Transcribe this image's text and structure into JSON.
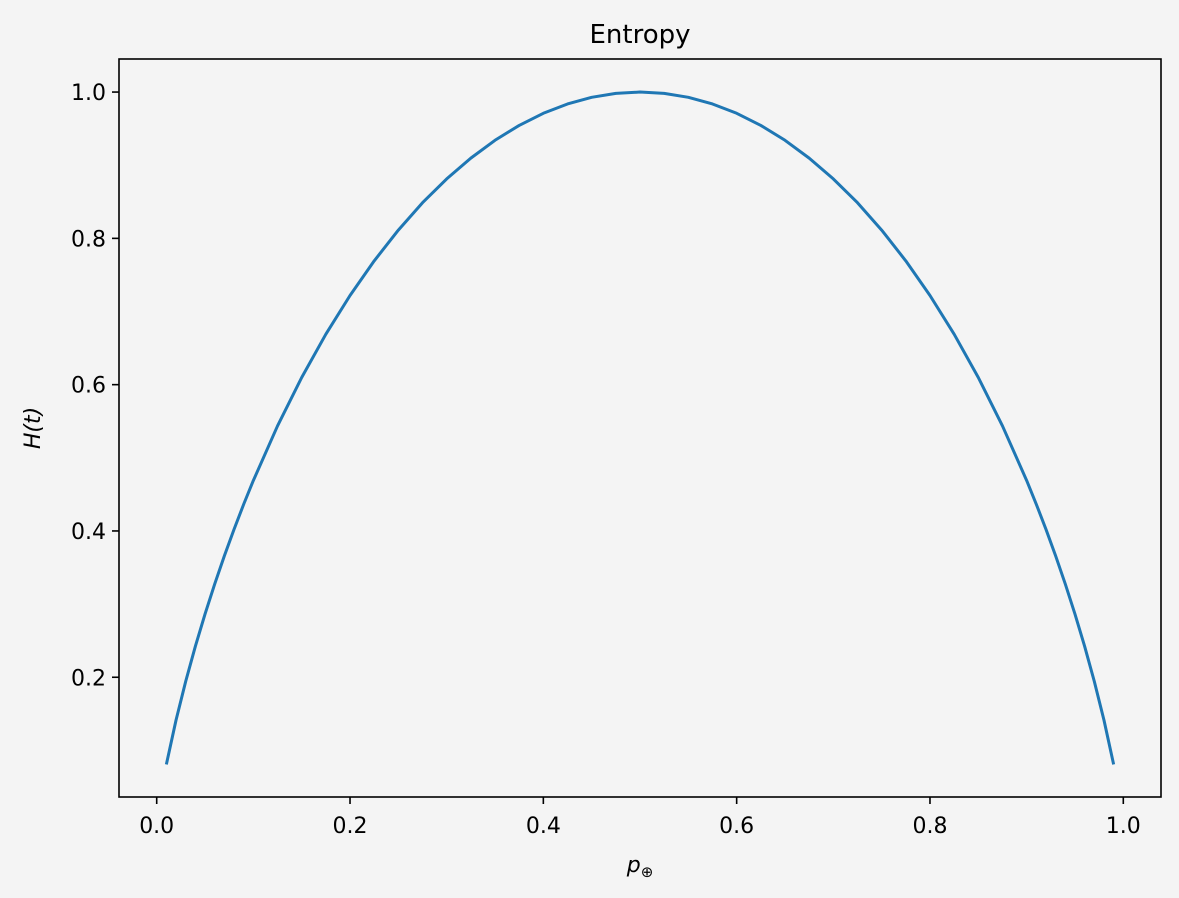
{
  "chart_data": {
    "type": "line",
    "title": "Entropy",
    "xlabel": "p",
    "xlabel_subscript": "⊕",
    "ylabel": "H(t)",
    "xlim": [
      -0.039,
      1.039
    ],
    "ylim": [
      0.0363,
      1.0452
    ],
    "x_ticks": [
      0.0,
      0.2,
      0.4,
      0.6,
      0.8,
      1.0
    ],
    "x_tick_labels": [
      "0.0",
      "0.2",
      "0.4",
      "0.6",
      "0.8",
      "1.0"
    ],
    "y_ticks": [
      0.2,
      0.4,
      0.6,
      0.8,
      1.0
    ],
    "y_tick_labels": [
      "0.2",
      "0.4",
      "0.6",
      "0.8",
      "1.0"
    ],
    "grid": false,
    "colors": {
      "background": "#f4f4f4",
      "line": "#1f77b4",
      "axes": "#000000"
    },
    "series": [
      {
        "x": [
          0.01,
          0.02,
          0.03,
          0.04,
          0.05,
          0.06,
          0.07,
          0.08,
          0.09,
          0.1,
          0.125,
          0.15,
          0.175,
          0.2,
          0.225,
          0.25,
          0.275,
          0.3,
          0.325,
          0.35,
          0.375,
          0.4,
          0.425,
          0.45,
          0.475,
          0.5,
          0.525,
          0.55,
          0.575,
          0.6,
          0.625,
          0.65,
          0.675,
          0.7,
          0.725,
          0.75,
          0.775,
          0.8,
          0.825,
          0.85,
          0.875,
          0.9,
          0.91,
          0.92,
          0.93,
          0.94,
          0.95,
          0.96,
          0.97,
          0.98,
          0.99
        ],
        "values": [
          0.0808,
          0.1414,
          0.1944,
          0.2423,
          0.2864,
          0.3274,
          0.3659,
          0.4022,
          0.4365,
          0.469,
          0.5436,
          0.6098,
          0.669,
          0.7219,
          0.7692,
          0.8113,
          0.8487,
          0.8813,
          0.9097,
          0.9341,
          0.9544,
          0.971,
          0.9837,
          0.9928,
          0.9982,
          1.0,
          0.9982,
          0.9928,
          0.9837,
          0.971,
          0.9544,
          0.9341,
          0.9097,
          0.8813,
          0.8487,
          0.8113,
          0.7692,
          0.7219,
          0.669,
          0.6098,
          0.5436,
          0.469,
          0.4365,
          0.4022,
          0.3659,
          0.3274,
          0.2864,
          0.2423,
          0.1944,
          0.1414,
          0.0808
        ]
      }
    ]
  }
}
